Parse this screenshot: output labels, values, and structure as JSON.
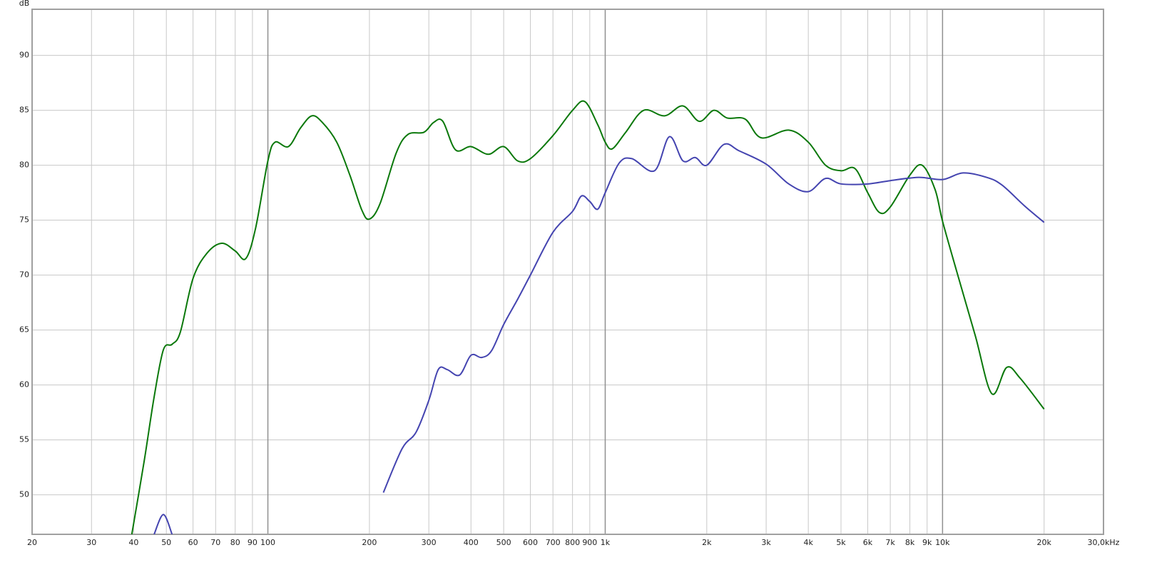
{
  "chart_data": {
    "type": "line",
    "y_label": "dB",
    "log_x": true,
    "grid": true,
    "xlim": [
      20,
      30000
    ],
    "ylim": [
      46.4,
      94.2
    ],
    "xticks": [
      20,
      30,
      40,
      50,
      60,
      70,
      80,
      90,
      100,
      200,
      300,
      400,
      500,
      600,
      700,
      800,
      900,
      {
        "value": 1000,
        "label": "1k"
      },
      {
        "value": 2000,
        "label": "2k"
      },
      {
        "value": 3000,
        "label": "3k"
      },
      {
        "value": 4000,
        "label": "4k"
      },
      {
        "value": 5000,
        "label": "5k"
      },
      {
        "value": 6000,
        "label": "6k"
      },
      {
        "value": 7000,
        "label": "7k"
      },
      {
        "value": 8000,
        "label": "8k"
      },
      {
        "value": 9000,
        "label": "9k"
      },
      {
        "value": 10000,
        "label": "10k"
      },
      {
        "value": 20000,
        "label": "20k"
      },
      {
        "value": 30000,
        "label": "30,0kHz"
      }
    ],
    "major_xticks": [
      100,
      1000,
      10000
    ],
    "yticks": [
      50,
      55,
      60,
      65,
      70,
      75,
      80,
      85,
      90
    ],
    "series": [
      {
        "color": "#0a780a",
        "x": [
          39.5,
          43,
          46,
          49,
          52,
          55,
          60,
          66,
          73,
          80,
          86,
          92,
          100,
          105,
          115,
          125,
          135,
          145,
          160,
          175,
          190,
          200,
          215,
          240,
          260,
          290,
          310,
          330,
          360,
          400,
          450,
          500,
          550,
          600,
          700,
          800,
          870,
          950,
          1000,
          1050,
          1150,
          1300,
          1500,
          1700,
          1900,
          2100,
          2300,
          2600,
          2900,
          3500,
          4000,
          4500,
          5000,
          5500,
          6000,
          6500,
          7000,
          8000,
          8700,
          9500,
          10000,
          11000,
          12500,
          14000,
          15500,
          17000,
          20000
        ],
        "values": [
          46.4,
          53.1,
          58.9,
          63.2,
          63.7,
          64.8,
          69.7,
          72.0,
          72.9,
          72.2,
          71.5,
          74.3,
          80.4,
          82.1,
          81.7,
          83.4,
          84.5,
          83.9,
          82.1,
          79.1,
          75.9,
          75.1,
          76.5,
          81.1,
          82.8,
          83.0,
          83.9,
          84.0,
          81.4,
          81.7,
          81.0,
          81.7,
          80.4,
          80.6,
          82.7,
          85.0,
          85.8,
          83.7,
          82.1,
          81.5,
          83.0,
          85.0,
          84.5,
          85.4,
          84.0,
          85.0,
          84.3,
          84.2,
          82.5,
          83.2,
          82.1,
          80.0,
          79.5,
          79.7,
          77.5,
          75.7,
          76.2,
          79.1,
          80.0,
          77.8,
          74.9,
          70.4,
          64.5,
          59.2,
          61.6,
          60.6,
          57.8
        ]
      },
      {
        "color": "#4444b0",
        "x": [
          46,
          49,
          52,
          205,
          220,
          250,
          275,
          300,
          320,
          340,
          370,
          400,
          430,
          460,
          500,
          550,
          600,
          700,
          800,
          850,
          900,
          950,
          1000,
          1100,
          1200,
          1400,
          1550,
          1700,
          1850,
          2000,
          2250,
          2500,
          3000,
          3500,
          4000,
          4500,
          5000,
          6000,
          7000,
          8500,
          10000,
          11500,
          13500,
          15000,
          17500,
          20000
        ],
        "values": [
          46.4,
          48.2,
          46.4,
          null,
          50.2,
          54.2,
          55.7,
          58.6,
          61.4,
          61.4,
          60.9,
          62.7,
          62.5,
          63.1,
          65.5,
          67.8,
          70.0,
          73.9,
          75.8,
          77.2,
          76.7,
          76.0,
          77.5,
          80.2,
          80.6,
          79.5,
          82.6,
          80.4,
          80.7,
          80.0,
          81.9,
          81.3,
          80.1,
          78.3,
          77.6,
          78.8,
          78.3,
          78.3,
          78.6,
          78.9,
          78.7,
          79.3,
          78.9,
          78.2,
          76.3,
          74.8
        ]
      }
    ]
  }
}
